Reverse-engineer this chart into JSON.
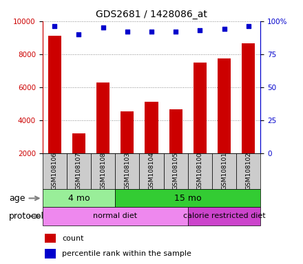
{
  "title": "GDS2681 / 1428086_at",
  "samples": [
    "GSM108106",
    "GSM108107",
    "GSM108108",
    "GSM108103",
    "GSM108104",
    "GSM108105",
    "GSM108100",
    "GSM108101",
    "GSM108102"
  ],
  "counts": [
    9100,
    3200,
    6300,
    4550,
    5100,
    4650,
    7500,
    7750,
    8650
  ],
  "percentile_ranks": [
    96,
    90,
    95,
    92,
    92,
    92,
    93,
    94,
    96
  ],
  "ylim_left": [
    2000,
    10000
  ],
  "ylim_right": [
    0,
    100
  ],
  "yticks_left": [
    2000,
    4000,
    6000,
    8000,
    10000
  ],
  "yticks_right": [
    0,
    25,
    50,
    75,
    100
  ],
  "bar_color": "#cc0000",
  "dot_color": "#0000cc",
  "bar_bottom": 2000,
  "age_groups": [
    {
      "label": "4 mo",
      "start": 0,
      "end": 3,
      "color": "#99ee99"
    },
    {
      "label": "15 mo",
      "start": 3,
      "end": 9,
      "color": "#33cc33"
    }
  ],
  "protocol_groups": [
    {
      "label": "normal diet",
      "start": 0,
      "end": 6,
      "color": "#ee88ee"
    },
    {
      "label": "calorie restricted diet",
      "start": 6,
      "end": 9,
      "color": "#cc44cc"
    }
  ],
  "grid_color": "#888888",
  "grid_style": "dotted",
  "background_color": "#ffffff",
  "plot_bg_color": "#ffffff",
  "label_color_left": "#cc0000",
  "label_color_right": "#0000cc",
  "xtick_bg_color": "#cccccc"
}
